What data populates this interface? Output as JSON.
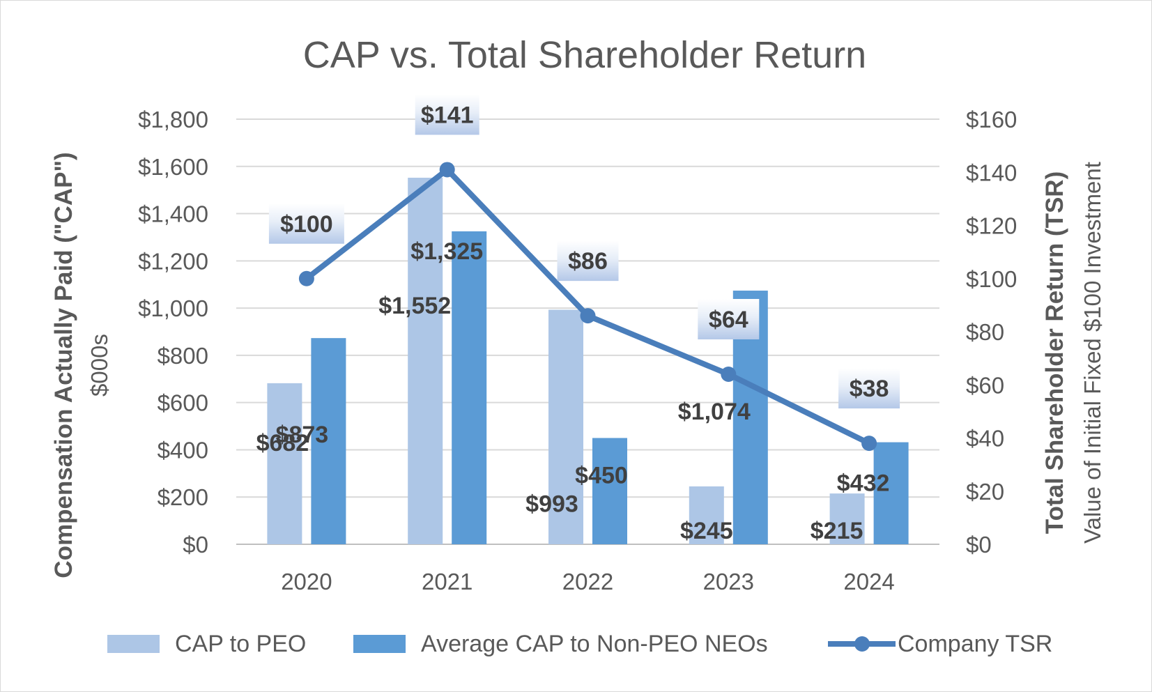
{
  "chart_data": {
    "type": "bar+line",
    "title": "CAP vs. Total Shareholder Return",
    "categories": [
      "2020",
      "2021",
      "2022",
      "2023",
      "2024"
    ],
    "left_axis": {
      "title": "Compensation Actually Paid (\"CAP\")",
      "subtitle": "$000s",
      "min": 0,
      "max": 1800,
      "step": 200,
      "ticks": [
        "$0",
        "$200",
        "$400",
        "$600",
        "$800",
        "$1,000",
        "$1,200",
        "$1,400",
        "$1,600",
        "$1,800"
      ]
    },
    "right_axis": {
      "title": "Total Shareholder Return (TSR)",
      "subtitle": "Value of Initial Fixed $100 Investment",
      "min": 0,
      "max": 160,
      "step": 20,
      "ticks": [
        "$0",
        "$20",
        "$40",
        "$60",
        "$80",
        "$100",
        "$120",
        "$140",
        "$160"
      ]
    },
    "series": [
      {
        "name": "CAP to PEO",
        "kind": "bar",
        "axis": "left",
        "color": "#adc6e6",
        "values": [
          682,
          1552,
          993,
          245,
          215
        ],
        "labels": [
          "$682",
          "$1,552",
          "$993",
          "$245",
          "$215"
        ]
      },
      {
        "name": "Average CAP to Non-PEO NEOs",
        "kind": "bar",
        "axis": "left",
        "color": "#5b9bd5",
        "values": [
          873,
          1325,
          450,
          1074,
          432
        ],
        "labels": [
          "$873",
          "$1,325",
          "$450",
          "$1,074",
          "$432"
        ]
      },
      {
        "name": "Company TSR",
        "kind": "line",
        "axis": "right",
        "color": "#4a7ebb",
        "values": [
          100,
          141,
          86,
          64,
          38
        ],
        "labels": [
          "$100",
          "$141",
          "$86",
          "$64",
          "$38"
        ]
      }
    ],
    "legend_position": "bottom",
    "grid": true
  }
}
